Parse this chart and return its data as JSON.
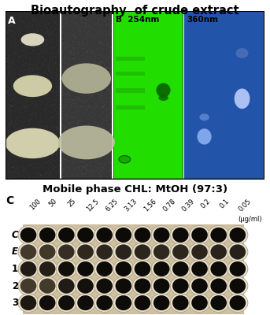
{
  "title": "Bioautography  of crude extract",
  "subtitle": "Mobile phase CHL: MtOH (97:3)",
  "concentrations": [
    "100",
    "50",
    "25",
    "12.5",
    "6.25",
    "3.13",
    "1.56",
    "0.78",
    "0.39",
    "0.2",
    "0.1",
    "0.05"
  ],
  "unit_label": "(μg/ml)",
  "row_labels": [
    "C",
    "E",
    "1",
    "2",
    "3"
  ],
  "figure_bg": "#ffffff",
  "title_fontsize": 10.5,
  "subtitle_fontsize": 9.5,
  "panel_A_bg": "#2e2e2e",
  "panel_A2_bg": "#3c3c3c",
  "panel_B_bg": "#22dd00",
  "panel_360_bg": "#2255bb",
  "plate_bg": "#d4c4a0"
}
